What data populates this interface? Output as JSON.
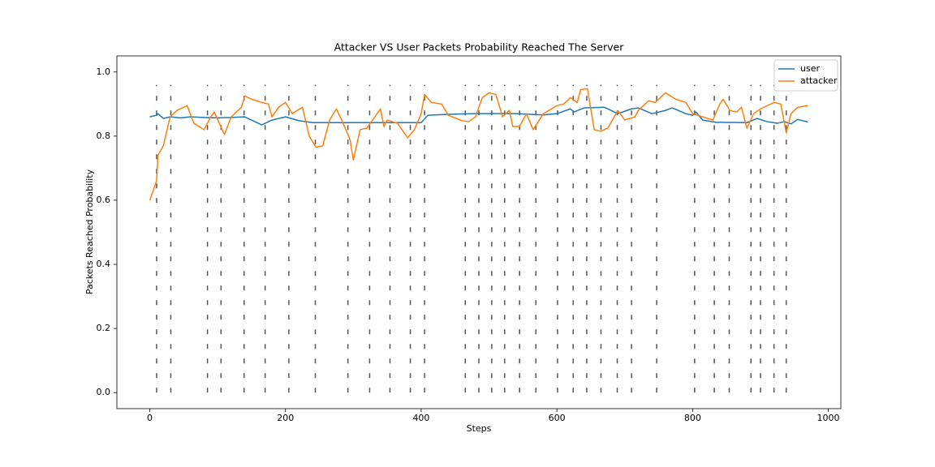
{
  "chart_data": {
    "type": "line",
    "title": "Attacker VS User Packets Probability Reached The Server",
    "x_label": "Steps",
    "y_label": "Packets Reached Probability",
    "xlim": [
      -48.5,
      1018.5
    ],
    "ylim": [
      -0.05,
      1.05
    ],
    "xticks": [
      0,
      200,
      400,
      600,
      800,
      1000
    ],
    "yticks": [
      {
        "value": 0,
        "label": "0.0"
      },
      {
        "value": 0.2,
        "label": "0.2"
      },
      {
        "value": 0.4,
        "label": "0.4"
      },
      {
        "value": 0.6,
        "label": "0.6"
      },
      {
        "value": 0.8,
        "label": "0.8"
      },
      {
        "value": 1,
        "label": "1.0"
      }
    ],
    "legend": "upper right",
    "vlines": {
      "x": [
        10,
        31,
        85,
        105,
        139,
        170,
        205,
        244,
        292,
        324,
        354,
        384,
        405,
        465,
        485,
        504,
        523,
        545,
        569,
        601,
        624,
        644,
        665,
        689,
        710,
        747,
        803,
        832,
        854,
        886,
        900,
        920,
        938
      ],
      "ymin": 0,
      "ymax": 0.96,
      "color": "#555555"
    },
    "series": [
      {
        "name": "user",
        "color": "#1f77b4",
        "x": [
          0,
          10,
          12,
          20,
          30,
          45,
          60,
          80,
          100,
          120,
          140,
          155,
          165,
          180,
          200,
          220,
          240,
          300,
          400,
          410,
          440,
          480,
          540,
          560,
          580,
          600,
          620,
          625,
          640,
          670,
          690,
          710,
          720,
          740,
          760,
          770,
          790,
          800,
          805,
          815,
          835,
          880,
          895,
          910,
          925,
          935,
          945,
          955,
          970
        ],
        "values": [
          0.86,
          0.865,
          0.87,
          0.855,
          0.86,
          0.857,
          0.86,
          0.858,
          0.857,
          0.858,
          0.86,
          0.845,
          0.835,
          0.85,
          0.86,
          0.848,
          0.842,
          0.842,
          0.842,
          0.865,
          0.868,
          0.87,
          0.87,
          0.868,
          0.866,
          0.87,
          0.885,
          0.875,
          0.888,
          0.89,
          0.87,
          0.885,
          0.888,
          0.87,
          0.88,
          0.888,
          0.87,
          0.865,
          0.875,
          0.85,
          0.843,
          0.842,
          0.855,
          0.845,
          0.84,
          0.845,
          0.838,
          0.852,
          0.844
        ]
      },
      {
        "name": "attacker",
        "color": "#ff7f0e",
        "x": [
          0,
          10,
          12,
          20,
          30,
          40,
          55,
          65,
          80,
          90,
          95,
          110,
          120,
          135,
          140,
          150,
          165,
          175,
          180,
          190,
          200,
          210,
          225,
          235,
          245,
          255,
          265,
          275,
          285,
          295,
          300,
          310,
          320,
          340,
          345,
          350,
          365,
          380,
          390,
          400,
          405,
          415,
          430,
          440,
          460,
          470,
          480,
          490,
          500,
          510,
          520,
          530,
          535,
          545,
          555,
          565,
          580,
          600,
          610,
          620,
          630,
          635,
          645,
          655,
          665,
          675,
          690,
          700,
          715,
          720,
          735,
          745,
          760,
          775,
          790,
          800,
          815,
          830,
          840,
          845,
          855,
          865,
          872,
          880,
          890,
          900,
          910,
          920,
          930,
          938,
          945,
          955,
          970
        ],
        "values": [
          0.6,
          0.66,
          0.74,
          0.77,
          0.86,
          0.88,
          0.895,
          0.84,
          0.82,
          0.86,
          0.875,
          0.805,
          0.86,
          0.89,
          0.925,
          0.915,
          0.905,
          0.9,
          0.86,
          0.89,
          0.905,
          0.87,
          0.89,
          0.8,
          0.765,
          0.77,
          0.85,
          0.885,
          0.84,
          0.79,
          0.725,
          0.82,
          0.825,
          0.885,
          0.83,
          0.85,
          0.84,
          0.795,
          0.82,
          0.87,
          0.93,
          0.905,
          0.9,
          0.865,
          0.848,
          0.845,
          0.86,
          0.92,
          0.935,
          0.93,
          0.86,
          0.88,
          0.83,
          0.83,
          0.87,
          0.82,
          0.87,
          0.895,
          0.9,
          0.92,
          0.905,
          0.945,
          0.948,
          0.82,
          0.815,
          0.825,
          0.88,
          0.85,
          0.86,
          0.88,
          0.91,
          0.905,
          0.935,
          0.915,
          0.905,
          0.87,
          0.86,
          0.85,
          0.9,
          0.915,
          0.88,
          0.875,
          0.89,
          0.825,
          0.87,
          0.885,
          0.895,
          0.905,
          0.9,
          0.81,
          0.87,
          0.89,
          0.895
        ]
      }
    ]
  }
}
